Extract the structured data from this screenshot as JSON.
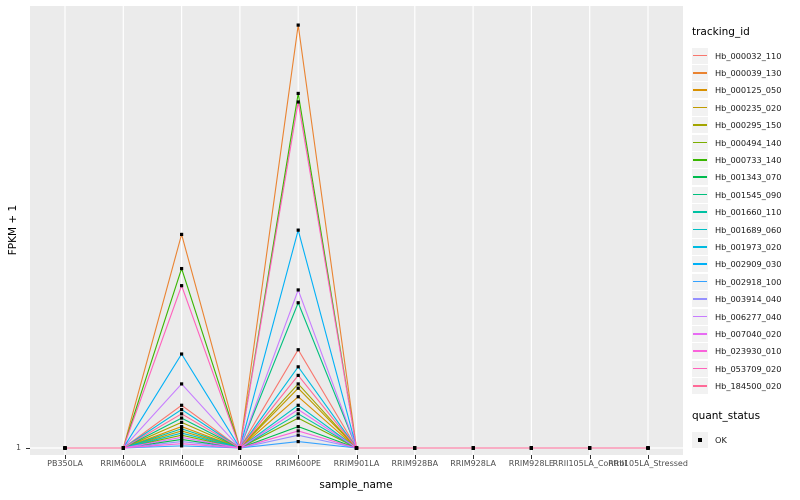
{
  "chart_data": {
    "type": "line",
    "title": "",
    "xlabel": "sample_name",
    "ylabel": "FPKM + 1",
    "categories": [
      "PB350LA",
      "RRIM600LA",
      "RRIM600LE",
      "RRIM600SE",
      "RRIM600PE",
      "RRIM901LA",
      "RRIM928BA",
      "RRIM928LA",
      "RRIM928LE",
      "RRII105LA_Control",
      "RRII105LA_Stressed"
    ],
    "ylim": [
      1,
      104
    ],
    "y_ticks": [
      {
        "value": 1,
        "label": "1"
      }
    ],
    "grid": "white gridlines on gray panel, vertical line per category, horizontal at y=1",
    "legend_position": "right",
    "legend_title": "tracking_id",
    "legend2_title": "quant_status",
    "legend2_items": [
      {
        "label": "OK",
        "marker": "black-square"
      }
    ],
    "marker": "black-square",
    "series": [
      {
        "name": "Hb_000032_110",
        "color": "#F8766D",
        "values": [
          1,
          1,
          11,
          1,
          24,
          1,
          1,
          1,
          1,
          1,
          1
        ]
      },
      {
        "name": "Hb_000039_130",
        "color": "#EA8331",
        "values": [
          1,
          1,
          51,
          1,
          100,
          1,
          1,
          1,
          1,
          1,
          1
        ]
      },
      {
        "name": "Hb_000125_050",
        "color": "#D89000",
        "values": [
          1,
          1,
          6,
          1,
          13,
          1,
          1,
          1,
          1,
          1,
          1
        ]
      },
      {
        "name": "Hb_000235_020",
        "color": "#C09B00",
        "values": [
          1,
          1,
          5,
          1,
          15,
          1,
          1,
          1,
          1,
          1,
          1
        ]
      },
      {
        "name": "Hb_000295_150",
        "color": "#A3A500",
        "values": [
          1,
          1,
          7,
          1,
          16,
          1,
          1,
          1,
          1,
          1,
          1
        ]
      },
      {
        "name": "Hb_000494_140",
        "color": "#7CAE00",
        "values": [
          1,
          1,
          4,
          1,
          8,
          1,
          1,
          1,
          1,
          1,
          1
        ]
      },
      {
        "name": "Hb_000733_140",
        "color": "#39B600",
        "values": [
          1,
          1,
          43,
          1,
          84,
          1,
          1,
          1,
          1,
          1,
          1
        ]
      },
      {
        "name": "Hb_001343_070",
        "color": "#00BB4E",
        "values": [
          1,
          1,
          3,
          1,
          6,
          1,
          1,
          1,
          1,
          1,
          1
        ]
      },
      {
        "name": "Hb_001545_090",
        "color": "#00BF7D",
        "values": [
          1,
          1,
          8,
          1,
          35,
          1,
          1,
          1,
          1,
          1,
          1
        ]
      },
      {
        "name": "Hb_001660_110",
        "color": "#00C1A3",
        "values": [
          1,
          1,
          5.5,
          1,
          9,
          1,
          1,
          1,
          1,
          1,
          1
        ]
      },
      {
        "name": "Hb_001689_060",
        "color": "#00BFC4",
        "values": [
          1,
          1,
          4.5,
          1,
          11,
          1,
          1,
          1,
          1,
          1,
          1
        ]
      },
      {
        "name": "Hb_001973_020",
        "color": "#00BAE0",
        "values": [
          1,
          1,
          10,
          1,
          20,
          1,
          1,
          1,
          1,
          1,
          1
        ]
      },
      {
        "name": "Hb_002909_030",
        "color": "#00B0F6",
        "values": [
          1,
          1,
          23,
          1,
          52,
          1,
          1,
          1,
          1,
          1,
          1
        ]
      },
      {
        "name": "Hb_002918_100",
        "color": "#35A2FF",
        "values": [
          1,
          1,
          1.5,
          1,
          2.5,
          1,
          1,
          1,
          1,
          1,
          1
        ]
      },
      {
        "name": "Hb_003914_040",
        "color": "#9590FF",
        "values": [
          1,
          1,
          2.5,
          1,
          4,
          1,
          1,
          1,
          1,
          1,
          1
        ]
      },
      {
        "name": "Hb_006277_040",
        "color": "#C77CFF",
        "values": [
          1,
          1,
          16,
          1,
          38,
          1,
          1,
          1,
          1,
          1,
          1
        ]
      },
      {
        "name": "Hb_007040_020",
        "color": "#E76BF3",
        "values": [
          1,
          1,
          3.5,
          1,
          10,
          1,
          1,
          1,
          1,
          1,
          1
        ]
      },
      {
        "name": "Hb_023930_010",
        "color": "#FA62DB",
        "values": [
          1,
          1,
          2,
          1,
          5,
          1,
          1,
          1,
          1,
          1,
          1
        ]
      },
      {
        "name": "Hb_053709_020",
        "color": "#FF62BC",
        "values": [
          1,
          1,
          39,
          1,
          82,
          1,
          1,
          1,
          1,
          1,
          1
        ]
      },
      {
        "name": "Hb_184500_020",
        "color": "#FF6A98",
        "values": [
          1,
          1,
          9,
          1,
          18,
          1,
          1,
          1,
          1,
          1,
          1
        ]
      }
    ]
  },
  "colors": {
    "figure_bg": "#FFFFFF",
    "panel_bg": "#EBEBEB",
    "grid": "#FFFFFF",
    "marker": "#000000",
    "tick_text": "#4D4D4D",
    "title_text": "#000000",
    "legend_key_bg": "#F2F2F2"
  }
}
